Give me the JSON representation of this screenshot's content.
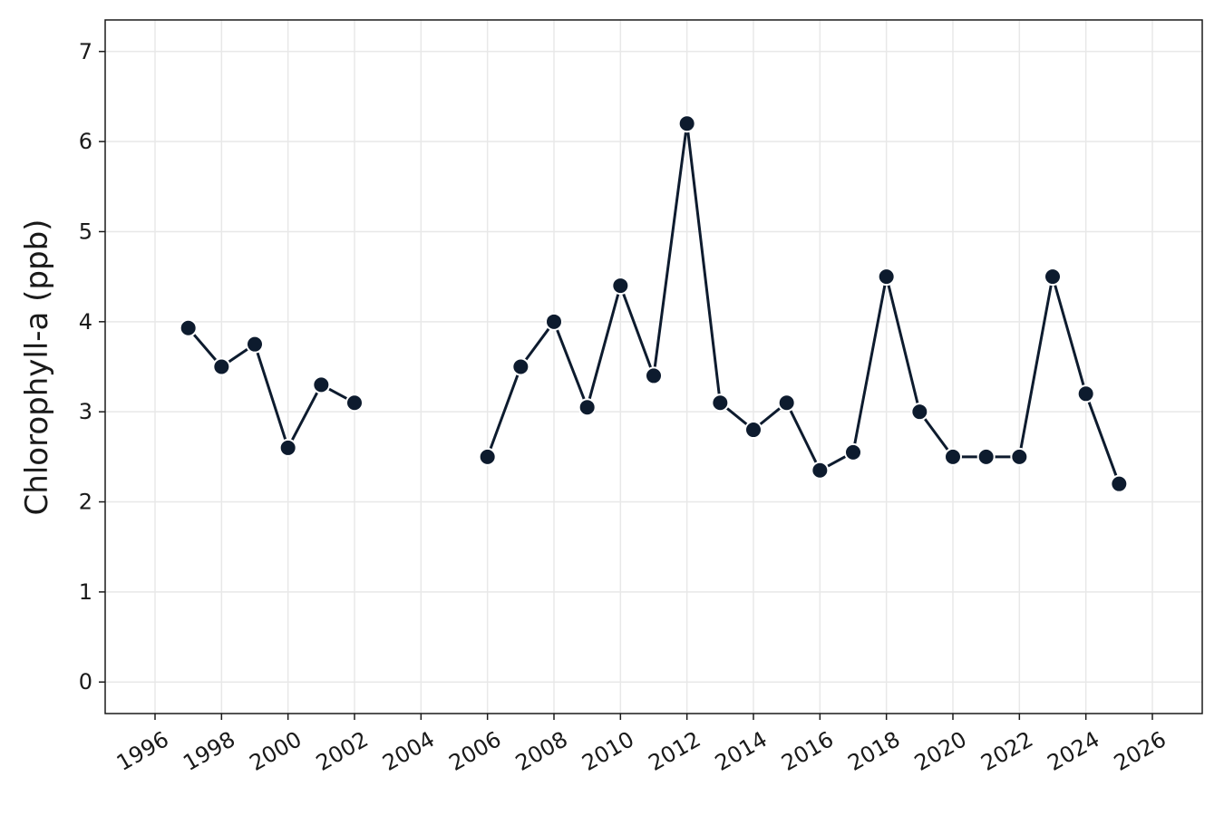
{
  "chart_data": {
    "type": "line",
    "title": "",
    "xlabel": "",
    "ylabel": "Chlorophyll-a (ppb)",
    "xlim": [
      1994.5,
      2027.5
    ],
    "ylim": [
      -0.35,
      7.35
    ],
    "x_ticks": [
      1996,
      1998,
      2000,
      2002,
      2004,
      2006,
      2008,
      2010,
      2012,
      2014,
      2016,
      2018,
      2020,
      2022,
      2024,
      2026
    ],
    "y_ticks": [
      0,
      1,
      2,
      3,
      4,
      5,
      6,
      7
    ],
    "grid": true,
    "series": [
      {
        "color": "#0d1b2e",
        "segments": [
          [
            {
              "x": 1997,
              "y": 3.93
            },
            {
              "x": 1998,
              "y": 3.5
            },
            {
              "x": 1999,
              "y": 3.75
            },
            {
              "x": 2000,
              "y": 2.6
            },
            {
              "x": 2001,
              "y": 3.3
            },
            {
              "x": 2002,
              "y": 3.1
            }
          ],
          [
            {
              "x": 2006,
              "y": 2.5
            },
            {
              "x": 2007,
              "y": 3.5
            },
            {
              "x": 2008,
              "y": 4.0
            },
            {
              "x": 2009,
              "y": 3.05
            },
            {
              "x": 2010,
              "y": 4.4
            },
            {
              "x": 2011,
              "y": 3.4
            },
            {
              "x": 2012,
              "y": 6.2
            },
            {
              "x": 2013,
              "y": 3.1
            },
            {
              "x": 2014,
              "y": 2.8
            },
            {
              "x": 2015,
              "y": 3.1
            },
            {
              "x": 2016,
              "y": 2.35
            },
            {
              "x": 2017,
              "y": 2.55
            },
            {
              "x": 2018,
              "y": 4.5
            },
            {
              "x": 2019,
              "y": 3.0
            },
            {
              "x": 2020,
              "y": 2.5
            },
            {
              "x": 2021,
              "y": 2.5
            },
            {
              "x": 2022,
              "y": 2.5
            },
            {
              "x": 2023,
              "y": 4.5
            },
            {
              "x": 2024,
              "y": 3.2
            },
            {
              "x": 2025,
              "y": 2.2
            }
          ]
        ]
      }
    ]
  }
}
